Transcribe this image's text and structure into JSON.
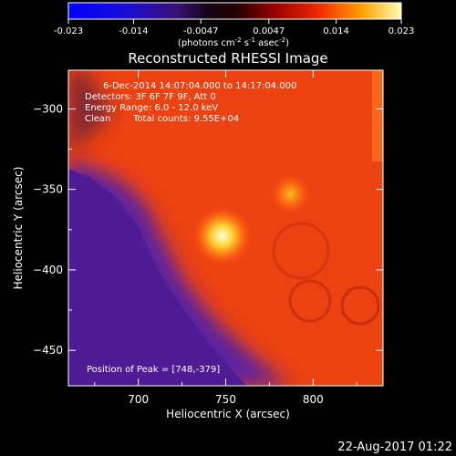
{
  "chart_data": {
    "type": "heatmap",
    "title": "Reconstructed RHESSI Image",
    "xlabel": "Heliocentric X (arcsec)",
    "ylabel": "Heliocentric Y (arcsec)",
    "xlim": [
      660,
      840
    ],
    "ylim": [
      -472,
      -276
    ],
    "xticks": [
      700,
      750,
      800
    ],
    "yticks": [
      -300,
      -350,
      -400,
      -450
    ],
    "colorbar": {
      "ticks": [
        "-0.023",
        "-0.014",
        "-0.0047",
        "0.0047",
        "0.014",
        "0.023"
      ],
      "range": [
        -0.023,
        0.023
      ],
      "label_main": "(photons cm",
      "label_exp1": "-2",
      "label_mid": " s",
      "label_exp2": "-1",
      "label_end": " asec",
      "label_exp3": "-2",
      "label_close": ")"
    },
    "annotations": {
      "time_range": "6-Dec-2014 14:07:04.000 to 14:17:04.000",
      "detectors": "Detectors: 3F 6F 7F 9F, Att 0",
      "energy": "Energy Range: 6.0 - 12.0 keV",
      "clean": "Clean",
      "total_counts": "Total counts: 9.55E+04",
      "peak": "Position of Peak = [748,-379]"
    },
    "sources": [
      {
        "x": 748,
        "y": -379,
        "intensity": 0.023
      },
      {
        "x": 787,
        "y": -353,
        "intensity": 0.016
      }
    ],
    "colors": {
      "negative": "#5a23a0",
      "background_positive": "#e83a10",
      "peak": "#ffffd0"
    }
  },
  "footer": {
    "date": "22-Aug-2017 01:22"
  }
}
